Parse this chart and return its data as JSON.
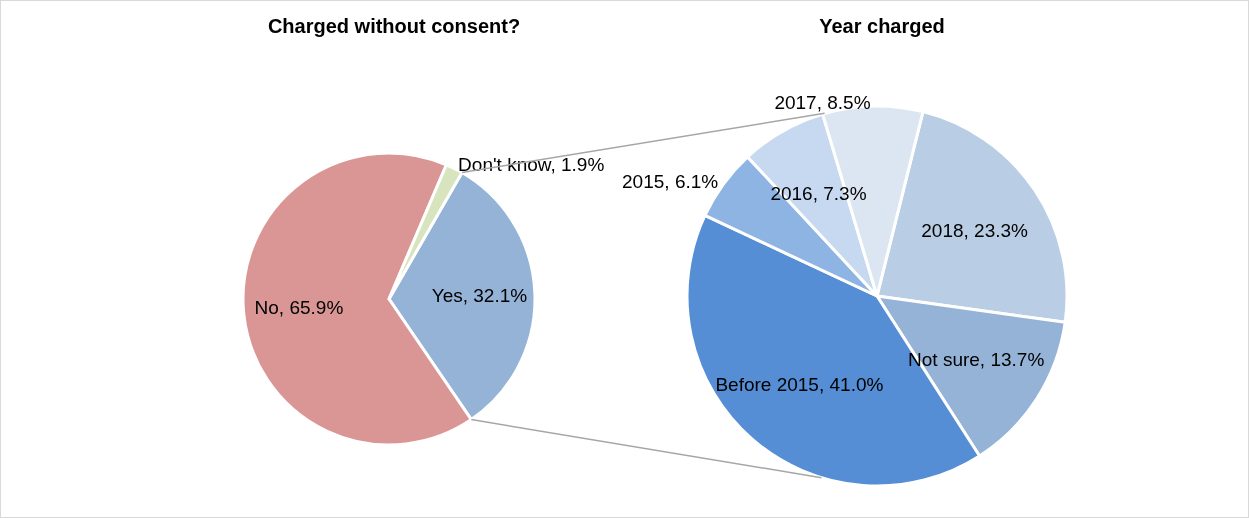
{
  "chart_data": [
    {
      "type": "pie",
      "title": "Charged without consent?",
      "categories": [
        "Yes",
        "No",
        "Don't know"
      ],
      "values": [
        32.1,
        65.9,
        1.9
      ],
      "value_labels": [
        "32.1%",
        "65.9%",
        "1.9%"
      ],
      "colors": [
        "#95b3d7",
        "#da9694",
        "#d7e4bd"
      ],
      "legend": false
    },
    {
      "type": "pie",
      "title": "Year charged",
      "categories": [
        "2018",
        "Not sure",
        "Before 2015",
        "2015",
        "2016",
        "2017"
      ],
      "values": [
        23.3,
        13.7,
        41.0,
        6.1,
        7.3,
        8.5
      ],
      "value_labels": [
        "23.3%",
        "13.7%",
        "41.0%",
        "6.1%",
        "7.3%",
        "8.5%"
      ],
      "colors": [
        "#b9cde5",
        "#95b3d7",
        "#558ed5",
        "#8eb4e3",
        "#c6d9f1",
        "#dce6f2"
      ],
      "legend": false
    }
  ]
}
